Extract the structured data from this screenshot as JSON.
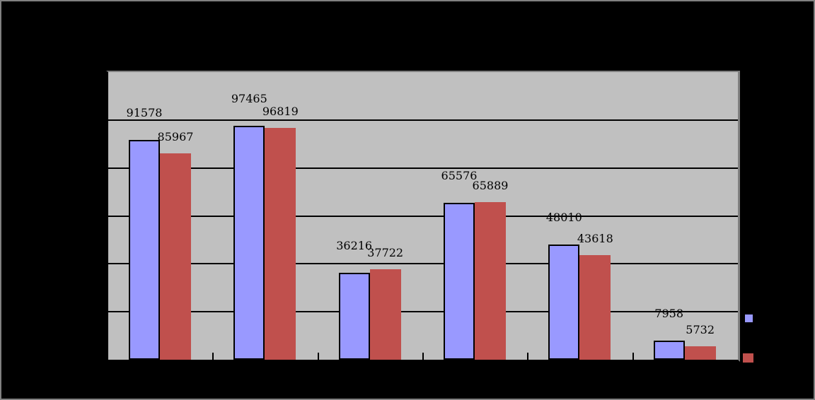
{
  "chart_data": {
    "type": "bar",
    "categories": [
      "",
      "",
      "",
      "",
      "",
      ""
    ],
    "series": [
      {
        "name": "series-1",
        "color": "#9999ff",
        "values": [
          91578,
          97465,
          36216,
          65576,
          48010,
          7958
        ]
      },
      {
        "name": "series-2",
        "color": "#c0504d",
        "values": [
          85967,
          96819,
          37722,
          65889,
          43618,
          5732
        ]
      }
    ],
    "data_labels": {
      "series-1": [
        "91578",
        "97465",
        "36216",
        "65576",
        "48010",
        "7958"
      ],
      "series-2": [
        "85967",
        "96819",
        "37722",
        "65889",
        "43618",
        "5732"
      ]
    },
    "ylim": [
      0,
      120000
    ],
    "y_gridline_interval": 20000,
    "grid": true,
    "legend_position": "right",
    "colors": {
      "plot_background": "#c0c0c0",
      "canvas_background": "#000000",
      "gridline": "#000000",
      "axis": "#000000",
      "plot_border": "#808080",
      "frame_border": "#808080",
      "label_text": "#000000"
    },
    "legend": {
      "items": [
        {
          "name": "legend-key-series-1",
          "color": "#9999ff"
        },
        {
          "name": "legend-key-series-2",
          "color": "#c0504d"
        }
      ]
    }
  }
}
